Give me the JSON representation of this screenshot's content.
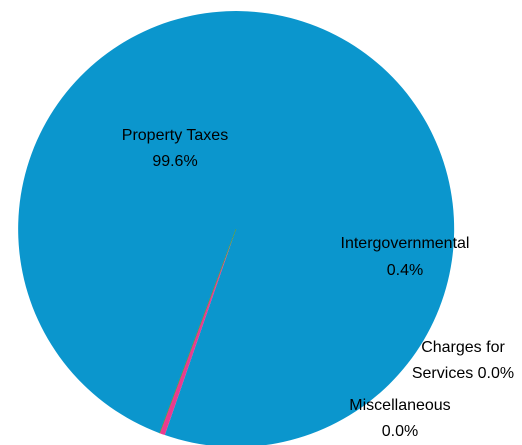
{
  "chart_data": {
    "type": "pie",
    "title": "",
    "slices": [
      {
        "label": "Property Taxes",
        "value": 99.6,
        "value_text": "99.6%",
        "color": "#0b96cd"
      },
      {
        "label": "Intergovernmental",
        "value": 0.4,
        "value_text": "0.4%",
        "color": "#ea3b8f"
      },
      {
        "label": "Charges for Services",
        "label_lines": [
          "Charges for",
          "Services 0.0%"
        ],
        "value": 0.0,
        "value_text": "0.0%",
        "color": "#f0a13a"
      },
      {
        "label": "Miscellaneous",
        "value": 0.0,
        "value_text": "0.0%",
        "color": "#3aa33a"
      }
    ],
    "labels_on_chart": true,
    "legend": "none"
  }
}
